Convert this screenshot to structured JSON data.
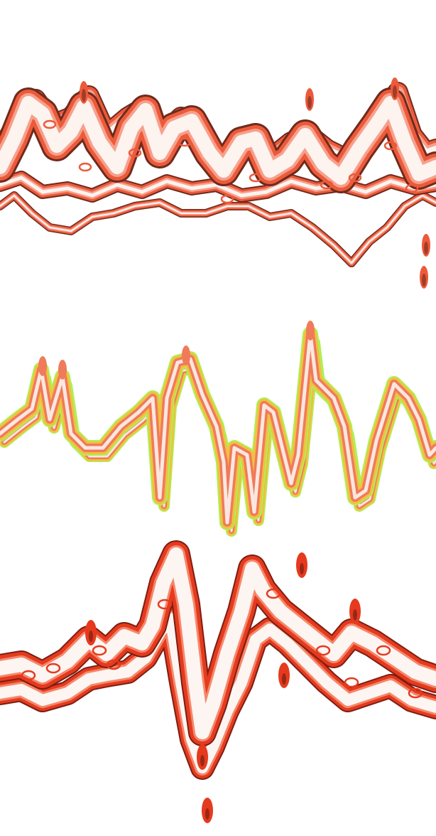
{
  "background_color": "#ffffff",
  "bands": [
    {
      "name": "waveform-band-top",
      "colors": {
        "halo": "#6e2a1e",
        "outer": "#ec5a3a",
        "mid": "#f6a08c",
        "core": "#fdf3ef"
      }
    },
    {
      "name": "waveform-band-middle",
      "colors": {
        "halo": "#aef055",
        "outer": "#f2c040",
        "mid": "#f07a5a",
        "core": "#fbe7df"
      }
    },
    {
      "name": "waveform-band-bottom",
      "colors": {
        "halo": "#7a1e12",
        "outer": "#e53a1e",
        "mid": "#f5876a",
        "core": "#fdf5f2"
      }
    }
  ]
}
